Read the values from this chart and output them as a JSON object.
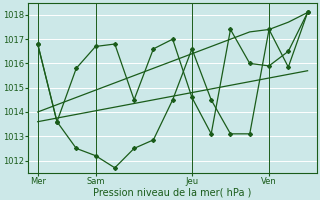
{
  "xlabel": "Pression niveau de la mer( hPa )",
  "bg_color": "#cce8e8",
  "grid_color": "#ffffff",
  "line_color": "#1a5c1a",
  "ylim": [
    1011.5,
    1018.5
  ],
  "yticks": [
    1012,
    1013,
    1014,
    1015,
    1016,
    1017,
    1018
  ],
  "xtick_labels": [
    "Mer",
    "Sam",
    "Jeu",
    "Ven"
  ],
  "xtick_positions": [
    0,
    3,
    8,
    12
  ],
  "n": 15,
  "series1": [
    1016.8,
    1013.6,
    1015.8,
    1016.7,
    1016.8,
    1014.5,
    1016.6,
    1017.0,
    1014.6,
    1013.1,
    1017.4,
    1016.0,
    1015.9,
    1016.5,
    1018.1
  ],
  "series2": [
    1016.8,
    1013.6,
    1012.5,
    1012.2,
    1011.7,
    1012.5,
    1012.85,
    1014.5,
    1016.6,
    1014.5,
    1013.1,
    1013.1,
    1017.4,
    1015.85,
    1018.1
  ],
  "trend_upper": [
    1014.0,
    1014.3,
    1014.6,
    1014.9,
    1015.2,
    1015.5,
    1015.8,
    1016.1,
    1016.4,
    1016.7,
    1017.0,
    1017.3,
    1017.4,
    1017.7,
    1018.1
  ],
  "trend_lower": [
    1013.6,
    1013.75,
    1013.9,
    1014.05,
    1014.2,
    1014.35,
    1014.5,
    1014.65,
    1014.8,
    1014.95,
    1015.1,
    1015.25,
    1015.4,
    1015.55,
    1015.7
  ]
}
